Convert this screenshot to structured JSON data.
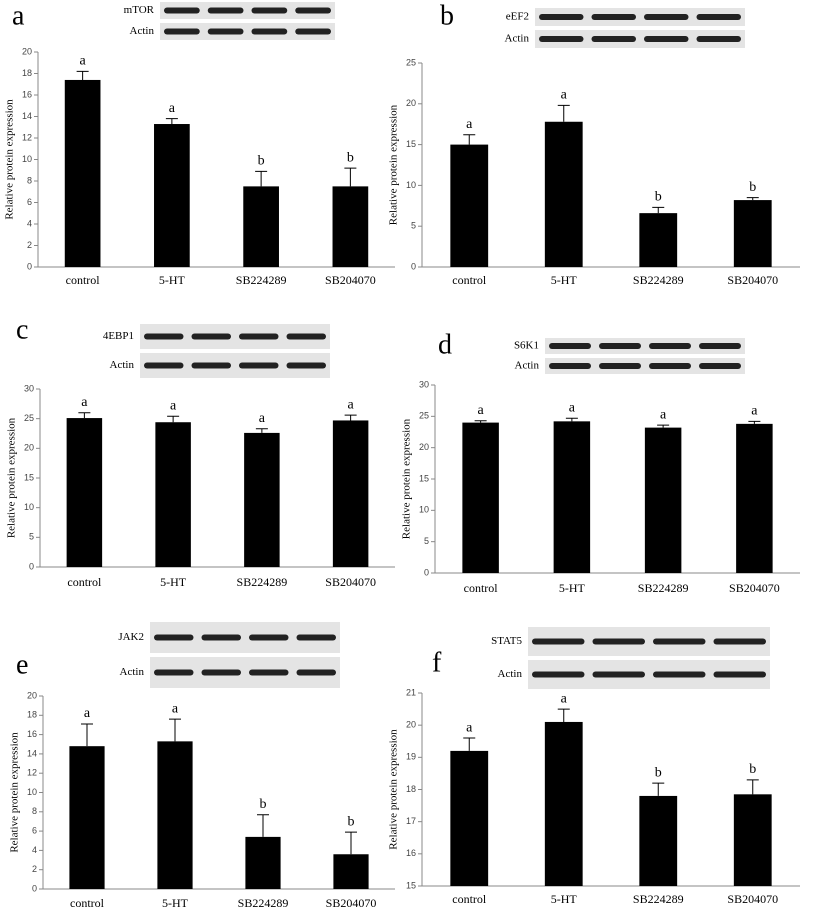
{
  "chart_data": [
    {
      "type": "bar",
      "panel": "a",
      "blot_labels": [
        "mTOR",
        "Actin"
      ],
      "y_label": "Relative protein expression",
      "categories": [
        "control",
        "5-HT",
        "SB224289",
        "SB204070"
      ],
      "values": [
        17.4,
        13.3,
        7.5,
        7.5
      ],
      "errors": [
        0.8,
        0.5,
        1.4,
        1.7
      ],
      "letters": [
        "a",
        "a",
        "b",
        "b"
      ],
      "color": "#000000",
      "ylim": [
        0,
        20
      ],
      "yticks": [
        0,
        2,
        4,
        6,
        8,
        10,
        12,
        14,
        16,
        18,
        20
      ]
    },
    {
      "type": "bar",
      "panel": "b",
      "blot_labels": [
        "eEF2",
        "Actin"
      ],
      "y_label": "Relative protein expression",
      "categories": [
        "control",
        "5-HT",
        "SB224289",
        "SB204070"
      ],
      "values": [
        15.0,
        17.8,
        6.6,
        8.2
      ],
      "errors": [
        1.2,
        2.0,
        0.7,
        0.3
      ],
      "letters": [
        "a",
        "a",
        "b",
        "b"
      ],
      "color": "#000000",
      "ylim": [
        0,
        25
      ],
      "yticks": [
        0,
        5,
        10,
        15,
        20,
        25
      ]
    },
    {
      "type": "bar",
      "panel": "c",
      "blot_labels": [
        "4EBP1",
        "Actin"
      ],
      "y_label": "Relative protein expression",
      "categories": [
        "control",
        "5-HT",
        "SB224289",
        "SB204070"
      ],
      "values": [
        25.1,
        24.4,
        22.6,
        24.7
      ],
      "errors": [
        0.9,
        1.0,
        0.7,
        0.9
      ],
      "letters": [
        "a",
        "a",
        "a",
        "a"
      ],
      "color": "#000000",
      "ylim": [
        0,
        30
      ],
      "yticks": [
        0,
        5,
        10,
        15,
        20,
        25,
        30
      ]
    },
    {
      "type": "bar",
      "panel": "d",
      "blot_labels": [
        "S6K1",
        "Actin"
      ],
      "y_label": "Relative protein expression",
      "categories": [
        "control",
        "5-HT",
        "SB224289",
        "SB204070"
      ],
      "values": [
        24.0,
        24.2,
        23.2,
        23.8
      ],
      "errors": [
        0.3,
        0.5,
        0.4,
        0.4
      ],
      "letters": [
        "a",
        "a",
        "a",
        "a"
      ],
      "color": "#000000",
      "ylim": [
        0,
        30
      ],
      "yticks": [
        0,
        5,
        10,
        15,
        20,
        25,
        30
      ]
    },
    {
      "type": "bar",
      "panel": "e",
      "blot_labels": [
        "JAK2",
        "Actin"
      ],
      "y_label": "Relative protein expression",
      "categories": [
        "control",
        "5-HT",
        "SB224289",
        "SB204070"
      ],
      "values": [
        14.8,
        15.3,
        5.4,
        3.6
      ],
      "errors": [
        2.3,
        2.3,
        2.3,
        2.3
      ],
      "letters": [
        "a",
        "a",
        "b",
        "b"
      ],
      "color": "#000000",
      "ylim": [
        0,
        20
      ],
      "yticks": [
        0,
        2,
        4,
        6,
        8,
        10,
        12,
        14,
        16,
        18,
        20
      ]
    },
    {
      "type": "bar",
      "panel": "f",
      "blot_labels": [
        "STAT5",
        "Actin"
      ],
      "y_label": "Relative protein expression",
      "categories": [
        "control",
        "5-HT",
        "SB224289",
        "SB204070"
      ],
      "values": [
        19.2,
        20.1,
        17.8,
        17.85
      ],
      "errors": [
        0.4,
        0.4,
        0.4,
        0.45
      ],
      "letters": [
        "a",
        "a",
        "b",
        "b"
      ],
      "color": "#000000",
      "ylim": [
        15,
        21
      ],
      "yticks": [
        15,
        16,
        17,
        18,
        19,
        20,
        21
      ]
    }
  ]
}
